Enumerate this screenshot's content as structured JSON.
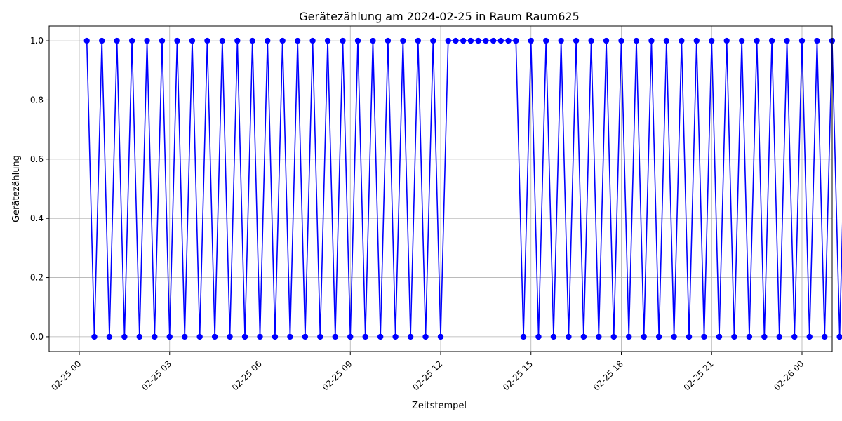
{
  "chart_data": {
    "type": "line",
    "title": "Gerätezählung am 2024-02-25 in Raum Raum625",
    "xlabel": "Zeitstempel",
    "ylabel": "Gerätezählung",
    "x_start": "2024-02-25 00:00",
    "x_step_minutes": 15,
    "x_ticks": [
      "02-25 00",
      "02-25 03",
      "02-25 06",
      "02-25 09",
      "02-25 12",
      "02-25 15",
      "02-25 18",
      "02-25 21",
      "02-26 00"
    ],
    "ylim": [
      -0.05,
      1.05
    ],
    "y_ticks": [
      "0.0",
      "0.2",
      "0.4",
      "0.6",
      "0.8",
      "1.0"
    ],
    "grid": true,
    "series": [
      {
        "color": "#0000ff",
        "marker": "circle",
        "values": [
          1,
          0,
          1,
          0,
          1,
          0,
          1,
          0,
          1,
          0,
          1,
          0,
          1,
          0,
          1,
          0,
          1,
          0,
          1,
          0,
          1,
          0,
          1,
          0,
          1,
          0,
          1,
          0,
          1,
          0,
          1,
          0,
          1,
          0,
          1,
          0,
          1,
          0,
          1,
          0,
          1,
          0,
          1,
          0,
          1,
          0,
          1,
          0,
          1,
          1,
          1,
          1,
          1,
          1,
          1,
          1,
          1,
          1,
          0,
          1,
          0,
          1,
          0,
          1,
          0,
          1,
          0,
          1,
          0,
          1,
          0,
          1,
          0,
          1,
          0,
          1,
          0,
          1,
          0,
          1,
          0,
          1,
          0,
          1,
          0,
          1,
          0,
          1,
          0,
          1,
          0,
          1,
          0,
          1,
          0,
          1,
          0,
          1,
          0,
          1,
          0,
          1,
          0,
          1,
          0,
          1,
          0,
          1,
          0,
          1,
          0,
          1,
          0,
          1,
          0,
          1,
          0,
          1,
          0,
          1,
          0,
          1,
          0,
          1,
          0,
          1,
          0,
          1,
          0,
          1,
          0,
          1,
          0,
          1,
          0,
          1,
          0,
          1,
          0,
          1,
          0,
          1,
          0,
          1,
          0,
          1,
          0,
          1,
          0,
          1,
          0,
          1,
          0,
          1,
          0,
          1,
          0,
          1,
          0,
          1,
          0,
          1,
          0,
          1,
          0,
          1,
          0,
          1,
          0,
          1,
          0,
          1,
          0,
          1,
          0,
          1,
          0,
          1,
          0,
          1,
          0,
          1,
          0,
          1,
          0,
          1,
          0,
          1,
          0,
          1,
          0,
          1,
          0,
          1,
          0,
          1,
          0,
          1
        ]
      }
    ]
  }
}
